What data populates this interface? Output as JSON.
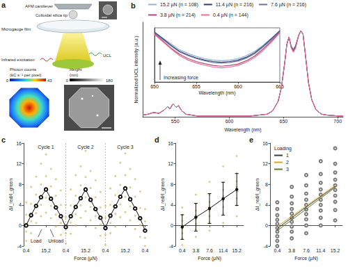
{
  "panel_a": {
    "label": "a",
    "cantilever": "AFM cantilever",
    "tip": "Colloidal silica tip",
    "film": "Microgauge film",
    "excitation": "Infrared excitation",
    "emission": "UCL",
    "photon_map": {
      "title": "Photon counts",
      "unit": "(kC s⁻¹ per pixel)",
      "range": [
        0,
        43
      ]
    },
    "height_map": {
      "title": "Height",
      "unit": "(nm)",
      "range": [
        0,
        180
      ]
    }
  },
  "chart_data": [
    {
      "type": "line",
      "title": "b",
      "x_label": "Wavelength (nm)",
      "y_label": "Normalized UCL intensity (a.u.)",
      "legend": "top",
      "grid": false,
      "tick_labels": "x",
      "x": [
        520,
        525,
        530,
        535,
        540,
        543,
        545,
        548,
        551,
        553,
        556,
        560,
        570,
        580,
        600,
        620,
        635,
        640,
        645,
        648,
        651,
        653,
        655,
        657,
        659,
        661,
        664,
        666,
        668,
        670,
        673,
        676,
        680,
        685,
        690,
        700,
        705
      ],
      "xlim": [
        520,
        705
      ],
      "xticks": [
        550,
        600,
        650,
        700
      ],
      "ylim": [
        0,
        1.1
      ],
      "series": [
        {
          "name": "15.2 µN (n = 108)",
          "color": "#8fb3d9",
          "values": [
            0.02,
            0.03,
            0.05,
            0.04,
            0.08,
            0.12,
            0.09,
            0.15,
            0.11,
            0.13,
            0.07,
            0.03,
            0.01,
            0.01,
            0.01,
            0.01,
            0.03,
            0.07,
            0.18,
            0.34,
            0.62,
            0.84,
            0.93,
            0.83,
            0.79,
            0.83,
            0.95,
            1.0,
            0.96,
            0.74,
            0.4,
            0.2,
            0.08,
            0.03,
            0.02,
            0.01,
            0.01
          ]
        },
        {
          "name": "11.4 µN (n = 216)",
          "color": "#2b3f73",
          "values": [
            0.02,
            0.03,
            0.05,
            0.04,
            0.08,
            0.12,
            0.09,
            0.15,
            0.11,
            0.13,
            0.07,
            0.03,
            0.01,
            0.01,
            0.01,
            0.01,
            0.03,
            0.07,
            0.18,
            0.34,
            0.62,
            0.84,
            0.93,
            0.82,
            0.78,
            0.82,
            0.95,
            1.0,
            0.96,
            0.74,
            0.4,
            0.2,
            0.08,
            0.03,
            0.02,
            0.01,
            0.01
          ]
        },
        {
          "name": "7.6 µN (n = 216)",
          "color": "#6f6f9e",
          "values": [
            0.02,
            0.03,
            0.05,
            0.04,
            0.08,
            0.12,
            0.09,
            0.15,
            0.11,
            0.13,
            0.07,
            0.03,
            0.01,
            0.01,
            0.01,
            0.01,
            0.03,
            0.07,
            0.18,
            0.34,
            0.62,
            0.84,
            0.93,
            0.82,
            0.77,
            0.81,
            0.95,
            1.0,
            0.96,
            0.74,
            0.4,
            0.2,
            0.08,
            0.03,
            0.02,
            0.01,
            0.01
          ]
        },
        {
          "name": "3.8 µN (n = 214)",
          "color": "#b1457a",
          "values": [
            0.02,
            0.03,
            0.05,
            0.04,
            0.08,
            0.12,
            0.09,
            0.15,
            0.11,
            0.13,
            0.07,
            0.03,
            0.01,
            0.01,
            0.01,
            0.01,
            0.03,
            0.07,
            0.18,
            0.34,
            0.62,
            0.84,
            0.93,
            0.81,
            0.76,
            0.8,
            0.95,
            1.0,
            0.96,
            0.74,
            0.4,
            0.2,
            0.08,
            0.03,
            0.02,
            0.01,
            0.01
          ]
        },
        {
          "name": "0.4 µN (n = 144)",
          "color": "#e8708f",
          "values": [
            0.02,
            0.03,
            0.05,
            0.04,
            0.08,
            0.12,
            0.09,
            0.15,
            0.11,
            0.13,
            0.07,
            0.03,
            0.01,
            0.01,
            0.01,
            0.01,
            0.03,
            0.07,
            0.18,
            0.34,
            0.62,
            0.84,
            0.93,
            0.8,
            0.75,
            0.79,
            0.95,
            1.0,
            0.96,
            0.74,
            0.4,
            0.2,
            0.08,
            0.03,
            0.02,
            0.01,
            0.01
          ]
        }
      ]
    },
    {
      "type": "line",
      "x_label": "Wavelength (nm)",
      "annotation": "Increasing force",
      "grid": false,
      "tick_labels": "x",
      "x": [
        650,
        651,
        652,
        653,
        654,
        655,
        656,
        657,
        658,
        659,
        660,
        661,
        662,
        663,
        664,
        665
      ],
      "xlim": [
        650,
        665
      ],
      "xticks": [
        650,
        655,
        660,
        665
      ],
      "ylim": [
        0.65,
        1.02
      ],
      "series": [
        {
          "name": "15.2 µN (n = 108)",
          "color": "#8fb3d9",
          "values": [
            0.99,
            0.95,
            0.91,
            0.87,
            0.845,
            0.825,
            0.81,
            0.8,
            0.795,
            0.8,
            0.81,
            0.83,
            0.86,
            0.9,
            0.95,
            1.0
          ]
        },
        {
          "name": "11.4 µN (n = 216)",
          "color": "#2b3f73",
          "values": [
            0.99,
            0.945,
            0.9,
            0.86,
            0.835,
            0.815,
            0.8,
            0.79,
            0.785,
            0.79,
            0.8,
            0.82,
            0.85,
            0.895,
            0.945,
            1.0
          ]
        },
        {
          "name": "7.6 µN (n = 216)",
          "color": "#6f6f9e",
          "values": [
            0.985,
            0.94,
            0.895,
            0.855,
            0.83,
            0.81,
            0.795,
            0.783,
            0.778,
            0.783,
            0.793,
            0.813,
            0.843,
            0.888,
            0.94,
            0.995
          ]
        },
        {
          "name": "3.8 µN (n = 214)",
          "color": "#b1457a",
          "values": [
            0.98,
            0.93,
            0.88,
            0.84,
            0.81,
            0.79,
            0.775,
            0.763,
            0.758,
            0.763,
            0.773,
            0.795,
            0.828,
            0.875,
            0.93,
            0.99
          ]
        },
        {
          "name": "0.4 µN (n = 144)",
          "color": "#e8708f",
          "values": [
            0.975,
            0.925,
            0.875,
            0.83,
            0.8,
            0.78,
            0.765,
            0.752,
            0.747,
            0.752,
            0.763,
            0.785,
            0.818,
            0.865,
            0.922,
            0.985
          ]
        }
      ]
    },
    {
      "type": "scatter",
      "title": "c",
      "x_label": "Force (µN)",
      "y_label": "ΔI_red/I_green",
      "grid": false,
      "cycles": [
        "Cycle 1",
        "Cycle 2",
        "Cycle 3"
      ],
      "load_label": "Load",
      "unload_label": "Unload",
      "categories": [
        "0.4",
        null,
        null,
        null,
        "15.2",
        null,
        null,
        null,
        "0.4",
        null,
        null,
        null,
        "15.2",
        null,
        null,
        null,
        "0.4",
        null,
        null,
        null,
        "15.2",
        null,
        null,
        null,
        "0.4"
      ],
      "ylim": [
        -4,
        16
      ],
      "yticks": [
        -4,
        0,
        4,
        8,
        12,
        16
      ],
      "series": [
        {
          "type": "scatter",
          "color": "#c8b35a",
          "marker": "circle",
          "points": [
            [
              -3,
              -1.2,
              0.4,
              2.1,
              4.5
            ],
            [
              -1.5,
              0.8,
              2.3,
              4.2,
              7.5
            ],
            [
              0.5,
              2.4,
              4,
              6,
              9.5
            ],
            [
              1.8,
              4,
              5.8,
              8,
              12
            ],
            [
              2.5,
              5.4,
              7.3,
              9.6,
              13.8
            ],
            [
              1.4,
              3.8,
              5.5,
              7.6,
              11
            ],
            [
              -0.2,
              2.1,
              3.7,
              5.8,
              9
            ],
            [
              -1.8,
              0.5,
              2,
              4,
              6.8
            ],
            [
              -3.5,
              -1.5,
              0,
              1.6,
              4
            ],
            [
              -1.6,
              0.6,
              2,
              3.9,
              7
            ],
            [
              0,
              2.2,
              3.9,
              5.8,
              9.8
            ],
            [
              1.5,
              3.9,
              5.5,
              7.8,
              11.5
            ],
            [
              2.8,
              5.5,
              7.2,
              9.4,
              14.5
            ],
            [
              1,
              3.6,
              5.2,
              7.3,
              10.6
            ],
            [
              -0.5,
              1.8,
              3.4,
              5.5,
              8.8
            ],
            [
              -2,
              0.2,
              1.7,
              3.5,
              6.5
            ],
            [
              -3.8,
              -1.8,
              -0.3,
              1.5,
              3.8
            ],
            [
              -1.5,
              0.5,
              2.1,
              4,
              7.2
            ],
            [
              -0.2,
              2.3,
              3.9,
              5.9,
              9.6
            ],
            [
              1.6,
              4.1,
              5.8,
              7.9,
              12.2
            ],
            [
              2.6,
              5.6,
              7.5,
              9.8,
              14
            ],
            [
              1,
              3.7,
              5.3,
              7.4,
              11
            ],
            [
              -0.7,
              1.9,
              3.5,
              5.6,
              9
            ],
            [
              -2.2,
              0.1,
              1.6,
              3.4,
              6.6
            ],
            [
              -4,
              -2.4,
              -0.8,
              0.8,
              3.2
            ]
          ]
        },
        {
          "type": "line",
          "color": "#111111",
          "marker": "emptyCircle",
          "values": [
            0,
            2,
            3.8,
            5.5,
            7,
            5.2,
            3.5,
            1.8,
            -0.3,
            1.8,
            3.6,
            5.3,
            7,
            5,
            3.2,
            1.5,
            -0.5,
            1.9,
            3.7,
            5.6,
            7.2,
            5.1,
            3.3,
            1.4,
            -1
          ]
        }
      ]
    },
    {
      "type": "scatter",
      "title": "d",
      "x_label": "Force (µN)",
      "y_label": "ΔI_red/I_green",
      "grid": false,
      "categories": [
        "0.4",
        "3.8",
        "7.6",
        "11.4",
        "15.2"
      ],
      "ylim": [
        -4,
        16
      ],
      "yticks": [
        -4,
        0,
        4,
        8,
        12,
        16
      ],
      "series": [
        {
          "type": "scatter",
          "color": "#c8b35a",
          "marker": "circle",
          "points": [
            [
              -3.8,
              -2.5,
              -1.5,
              -0.6,
              0,
              0.9,
              2,
              3.5
            ],
            [
              -2.2,
              -0.8,
              0.3,
              1.2,
              2,
              2.9,
              4.2,
              6
            ],
            [
              -1,
              0.6,
              1.8,
              2.9,
              3.6,
              4.6,
              6,
              8.5
            ],
            [
              0.5,
              2.2,
              3.6,
              4.8,
              5.7,
              6.9,
              8.4,
              11.5
            ],
            [
              1.8,
              3.9,
              5.3,
              6.6,
              7.5,
              8.6,
              10.2,
              13.5
            ]
          ]
        },
        {
          "type": "line",
          "color": "#111111",
          "marker": "circle",
          "values": [
            -0.3,
            1.6,
            3.3,
            5.2,
            7.0
          ],
          "errors": [
            2.4,
            2.7,
            2.9,
            3.2,
            3.1
          ]
        }
      ]
    },
    {
      "type": "scatter",
      "title": "e",
      "x_label": "Force (µN)",
      "y_label": "ΔI_red/I_green",
      "grid": false,
      "legend": "upper left",
      "legend_title": "Loading",
      "categories": [
        "0.4",
        "3.8",
        "7.6",
        "11.4",
        "15.2"
      ],
      "ylim": [
        -4,
        16
      ],
      "yticks": [
        -4,
        0,
        4,
        8,
        12,
        16
      ],
      "series": [
        {
          "type": "scatter",
          "color": "#7a7a7a",
          "marker": "emptyCircle",
          "points": [
            [
              -4,
              -3,
              -2.1,
              -1.2,
              -0.5,
              0.3,
              1.1,
              2,
              3.2,
              4.5
            ],
            [
              -2.5,
              -1.2,
              -0.2,
              0.7,
              1.5,
              2.3,
              3.2,
              4.3,
              5.6,
              7.5
            ],
            [
              -1.5,
              0,
              1.2,
              2.2,
              3.1,
              4,
              5,
              6.2,
              7.8,
              9.8
            ],
            [
              0,
              1.5,
              2.9,
              4,
              5,
              6,
              7,
              8.3,
              10,
              12.5
            ],
            [
              1,
              3,
              4.6,
              5.8,
              6.9,
              7.8,
              8.9,
              10.3,
              12,
              15
            ]
          ]
        },
        {
          "name": "1",
          "type": "line",
          "color": "#3a3a3a",
          "values": [
            -0.6,
            1.5,
            3.6,
            5.6,
            7.6
          ]
        },
        {
          "name": "2",
          "type": "line",
          "color": "#d9a520",
          "values": [
            -0.2,
            1.8,
            3.8,
            5.8,
            7.8
          ]
        },
        {
          "name": "3",
          "type": "line",
          "color": "#5b7d2c",
          "values": [
            -1.0,
            1.1,
            3.2,
            5.3,
            7.4
          ]
        }
      ]
    }
  ]
}
